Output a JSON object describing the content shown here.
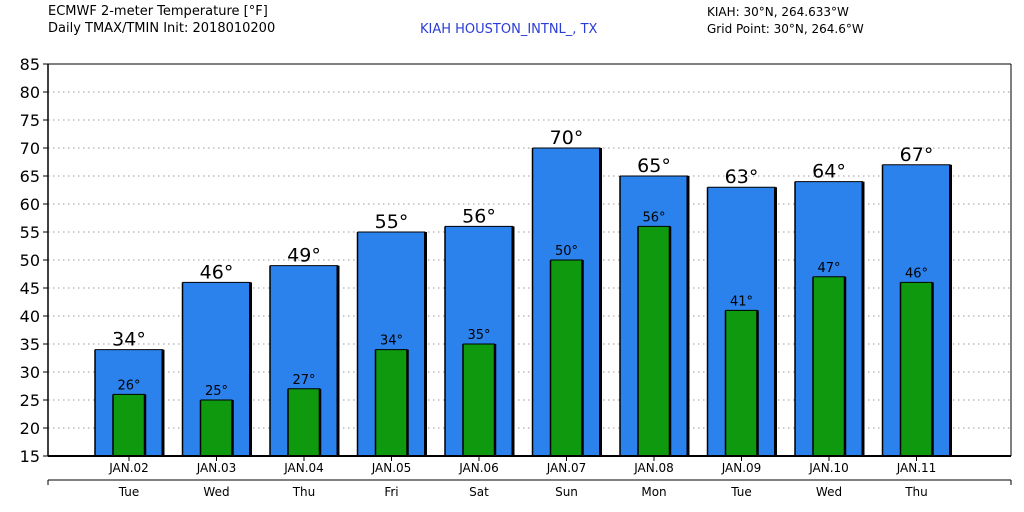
{
  "header": {
    "title_line1": "ECMWF 2-meter Temperature [°F]",
    "title_line2": "Daily TMAX/TMIN Init: 2018010200",
    "station": "KIAH HOUSTON_INTNL_, TX",
    "station_coord": "KIAH: 30°N, 264.633°W",
    "grid_coord": "Grid Point: 30°N, 264.6°W"
  },
  "chart_data": {
    "type": "bar",
    "categories": [
      "JAN.02",
      "JAN.03",
      "JAN.04",
      "JAN.05",
      "JAN.06",
      "JAN.07",
      "JAN.08",
      "JAN.09",
      "JAN.10",
      "JAN.11"
    ],
    "days": [
      "Tue",
      "Wed",
      "Thu",
      "Fri",
      "Sat",
      "Sun",
      "Mon",
      "Tue",
      "Wed",
      "Thu"
    ],
    "series": [
      {
        "values": [
          34,
          46,
          49,
          55,
          56,
          70,
          65,
          63,
          64,
          67
        ],
        "color": "#2b82ec"
      },
      {
        "values": [
          26,
          25,
          27,
          34,
          35,
          50,
          56,
          41,
          47,
          46
        ],
        "color": "#0e990e"
      }
    ],
    "max_labels": [
      "34°",
      "46°",
      "49°",
      "55°",
      "56°",
      "70°",
      "65°",
      "63°",
      "64°",
      "67°"
    ],
    "min_labels": [
      "26°",
      "25°",
      "27°",
      "34°",
      "35°",
      "50°",
      "56°",
      "41°",
      "47°",
      "46°"
    ],
    "yticks": [
      "15",
      "20",
      "25",
      "30",
      "35",
      "40",
      "45",
      "50",
      "55",
      "60",
      "65",
      "70",
      "75",
      "80",
      "85"
    ],
    "ylim": [
      15,
      85
    ],
    "grid": true
  }
}
